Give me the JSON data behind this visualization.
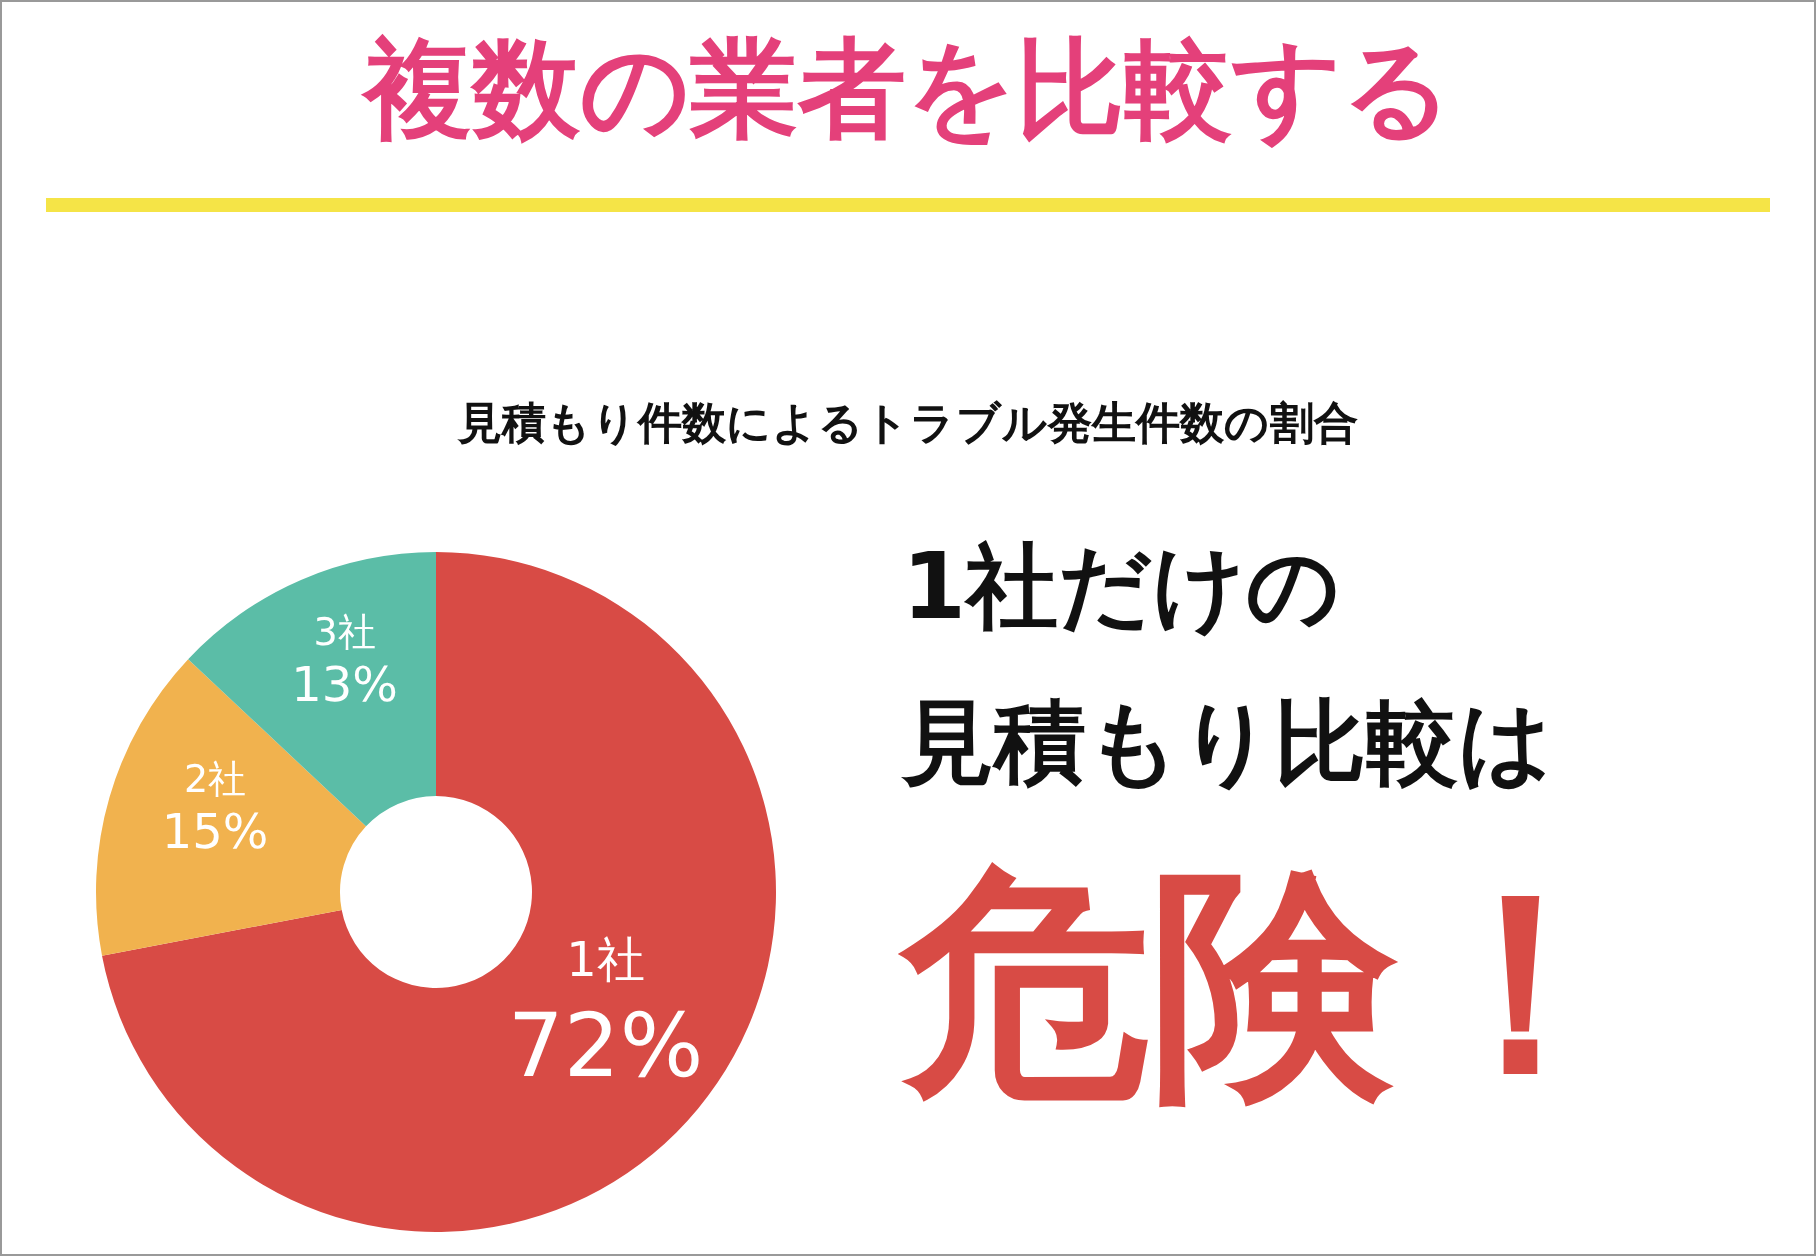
{
  "chart_data": {
    "type": "donut",
    "title": "複数の業者を比較する",
    "subtitle": "見積もり件数によるトラブル発生件数の割合",
    "categories": [
      "1社",
      "2社",
      "3社"
    ],
    "values": [
      72,
      15,
      13
    ],
    "value_labels": [
      "72%",
      "15%",
      "13%"
    ],
    "colors": [
      "#d84b45",
      "#f1b24e",
      "#5bbda7"
    ],
    "annotations": [
      "1社だけの",
      "見積もり比較は",
      "危険！"
    ]
  }
}
